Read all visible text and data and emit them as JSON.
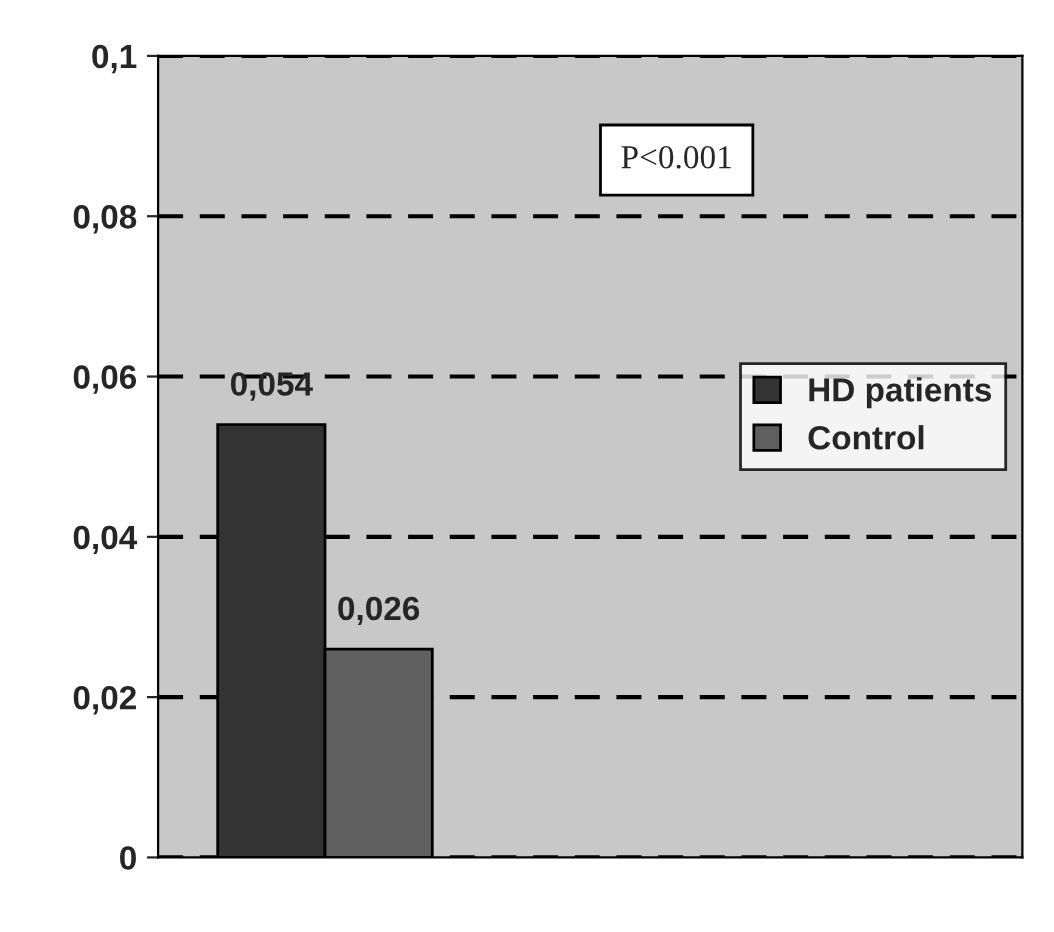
{
  "chart_data": {
    "type": "bar",
    "categories": [
      null
    ],
    "series": [
      {
        "name": "HD patients",
        "color": "#333333",
        "values": [
          0.054
        ],
        "value_labels": [
          "0,054"
        ]
      },
      {
        "name": "Control",
        "color": "#606060",
        "values": [
          0.026
        ],
        "value_labels": [
          "0,026"
        ]
      }
    ],
    "ylim": [
      0,
      0.1
    ],
    "yticks": [
      0,
      {
        "value": 0.02,
        "label": "0,02"
      },
      {
        "value": 0.04,
        "label": "0,04"
      },
      {
        "value": 0.06,
        "label": "0,06"
      },
      {
        "value": 0.08,
        "label": "0,08"
      },
      {
        "value": 0.1,
        "label": "0,1"
      }
    ],
    "grid": "y",
    "legend": "right",
    "annotations": [
      "P<0.001"
    ]
  }
}
